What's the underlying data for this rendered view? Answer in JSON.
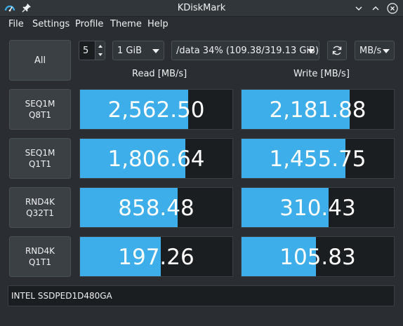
{
  "window": {
    "title": "KDiskMark"
  },
  "menu": [
    "File",
    "Settings",
    "Profile",
    "Theme",
    "Help"
  ],
  "toolbar": {
    "all_label": "All",
    "loops": "5",
    "size": "1 GiB",
    "target": "/data 34% (109.38/319.13 GiB)",
    "unit": "MB/s"
  },
  "columns": {
    "read": "Read [MB/s]",
    "write": "Write [MB/s]"
  },
  "tests": [
    {
      "line1": "SEQ1M",
      "line2": "Q8T1",
      "read": "2,562.50",
      "read_fill": 0.71,
      "write": "2,181.88",
      "write_fill": 0.71
    },
    {
      "line1": "SEQ1M",
      "line2": "Q1T1",
      "read": "1,806.64",
      "read_fill": 0.69,
      "write": "1,455.75",
      "write_fill": 0.68
    },
    {
      "line1": "RND4K",
      "line2": "Q32T1",
      "read": "858.48",
      "read_fill": 0.64,
      "write": "310.43",
      "write_fill": 0.57
    },
    {
      "line1": "RND4K",
      "line2": "Q1T1",
      "read": "197.26",
      "read_fill": 0.53,
      "write": "105.83",
      "write_fill": 0.49
    }
  ],
  "device": "INTEL SSDPED1D480GA",
  "colors": {
    "accent": "#3daee9",
    "background": "#2a2e32",
    "result_bg": "#1b1e20"
  }
}
